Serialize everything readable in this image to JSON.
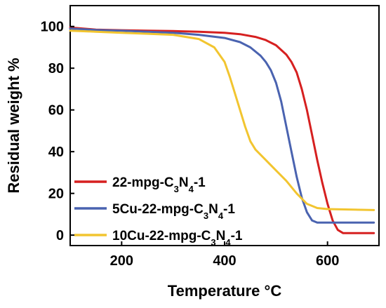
{
  "chart_data": {
    "type": "line",
    "xlabel": "Temperature °C",
    "ylabel": "Residual weight %",
    "xlim": [
      100,
      700
    ],
    "ylim": [
      -5,
      110
    ],
    "xticks": [
      200,
      400,
      600
    ],
    "xtick_labels": [
      "200",
      "400",
      "600"
    ],
    "yticks": [
      0,
      20,
      40,
      60,
      80,
      100
    ],
    "ytick_labels": [
      "0",
      "20",
      "40",
      "60",
      "80",
      "100"
    ],
    "legend_position": "bottom-left",
    "series": [
      {
        "name": "22-mpg-C3N4-1",
        "legend_parts": [
          [
            "22-mpg-C",
            ""
          ],
          [
            "3",
            "sub"
          ],
          [
            "N",
            ""
          ],
          [
            "4",
            "sub"
          ],
          [
            "-1",
            ""
          ]
        ],
        "color": "#d62020",
        "x": [
          100,
          150,
          200,
          250,
          300,
          350,
          400,
          430,
          460,
          480,
          500,
          520,
          530,
          540,
          550,
          560,
          570,
          580,
          590,
          600,
          610,
          620,
          630,
          650,
          690
        ],
        "y": [
          99.5,
          98.5,
          98.2,
          98.0,
          97.8,
          97.5,
          97.0,
          96.3,
          95.0,
          93.5,
          91.0,
          86.5,
          83.0,
          78.0,
          70.0,
          60.0,
          48.0,
          36.0,
          25.0,
          15.0,
          7.0,
          2.5,
          1.0,
          1.0,
          1.0
        ]
      },
      {
        "name": "5Cu-22-mpg-C3N4-1",
        "legend_parts": [
          [
            "5Cu-22-mpg-C",
            ""
          ],
          [
            "3",
            "sub"
          ],
          [
            "N",
            ""
          ],
          [
            "4",
            "sub"
          ],
          [
            "-1",
            ""
          ]
        ],
        "color": "#4a63b0",
        "x": [
          100,
          150,
          200,
          250,
          300,
          350,
          400,
          430,
          450,
          470,
          480,
          490,
          500,
          510,
          520,
          530,
          540,
          550,
          560,
          570,
          580,
          600,
          690
        ],
        "y": [
          99.0,
          98.3,
          98.0,
          97.5,
          97.0,
          96.0,
          94.5,
          92.5,
          90.0,
          86.0,
          83.0,
          79.0,
          73.0,
          64.0,
          52.0,
          40.0,
          28.0,
          18.0,
          11.0,
          7.0,
          6.0,
          6.0,
          6.0
        ]
      },
      {
        "name": "10Cu-22-mpg-C3N4-1",
        "legend_parts": [
          [
            "10Cu-22-mpg-C",
            ""
          ],
          [
            "3",
            "sub"
          ],
          [
            "N",
            ""
          ],
          [
            "4",
            "sub"
          ],
          [
            "-1",
            ""
          ]
        ],
        "color": "#f2c530",
        "x": [
          100,
          150,
          200,
          250,
          300,
          350,
          380,
          400,
          410,
          420,
          430,
          440,
          450,
          460,
          480,
          500,
          520,
          540,
          560,
          580,
          600,
          690
        ],
        "y": [
          98.0,
          97.5,
          97.0,
          96.5,
          96.0,
          94.0,
          90.0,
          83.0,
          76.0,
          68.0,
          60.0,
          52.0,
          45.0,
          41.0,
          36.0,
          31.0,
          26.0,
          20.0,
          15.0,
          13.0,
          12.5,
          12.0
        ]
      }
    ]
  }
}
